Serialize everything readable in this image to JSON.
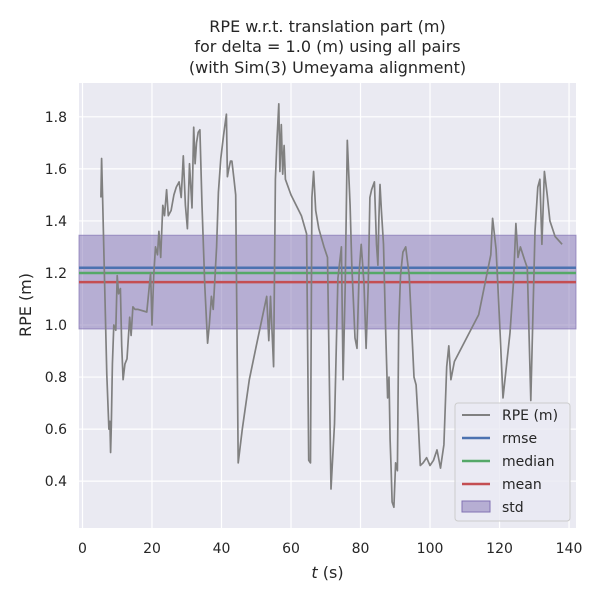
{
  "chart_data": {
    "type": "line",
    "title_lines": [
      "RPE w.r.t. translation part (m)",
      "for delta = 1.0 (m) using all pairs",
      "(with Sim(3) Umeyama alignment)"
    ],
    "xlabel_var": "t",
    "xlabel_unit": " (s)",
    "ylabel": "RPE (m)",
    "xlim": [
      -1,
      142
    ],
    "ylim": [
      0.22,
      1.93
    ],
    "xticks": [
      0,
      20,
      40,
      60,
      80,
      100,
      120,
      140
    ],
    "yticks": [
      0.4,
      0.6,
      0.8,
      1.0,
      1.2,
      1.4,
      1.6,
      1.8
    ],
    "ytick_labels": [
      "0.4",
      "0.6",
      "0.8",
      "1.0",
      "1.2",
      "1.4",
      "1.6",
      "1.8"
    ],
    "grid": true,
    "legend_position": "lower-right",
    "legend": [
      "RPE (m)",
      "rmse",
      "median",
      "mean",
      "std"
    ],
    "colors": {
      "rpe": "#808080",
      "rmse": "#4c72b0",
      "median": "#55a868",
      "mean": "#c44e52",
      "std_fill": "#8172b3",
      "plot_bg": "#eaeaf2",
      "grid": "#ffffff"
    },
    "stats": {
      "rmse": 1.22,
      "median": 1.2,
      "mean": 1.165,
      "std_low": 0.985,
      "std_high": 1.345
    },
    "series": [
      {
        "name": "RPE (m)",
        "x": [
          5.3,
          5.5,
          5.8,
          6.2,
          7.0,
          7.6,
          7.9,
          8.1,
          8.3,
          8.6,
          9.0,
          9.6,
          10.0,
          10.4,
          10.9,
          11.3,
          11.7,
          12.2,
          12.8,
          13.6,
          14.0,
          14.5,
          15.1,
          16.0,
          18.5,
          19.6,
          20.0,
          20.5,
          21.0,
          21.6,
          22.0,
          22.5,
          23.1,
          23.6,
          24.2,
          24.7,
          25.5,
          26.3,
          27.0,
          27.8,
          28.4,
          29.0,
          29.6,
          30.2,
          30.8,
          31.5,
          32.0,
          32.4,
          32.8,
          33.3,
          33.8,
          34.4,
          35.2,
          36.0,
          36.5,
          37.1,
          37.6,
          38.0,
          38.6,
          39.1,
          39.8,
          40.6,
          41.4,
          41.7,
          42.1,
          42.6,
          43.0,
          43.6,
          44.1,
          44.8,
          46.0,
          48.0,
          50.0,
          53.0,
          53.6,
          54.1,
          55.0,
          55.5,
          56.0,
          56.5,
          56.8,
          57.2,
          57.6,
          58.0,
          58.4,
          60.0,
          63.0,
          64.5,
          65.1,
          65.6,
          66.0,
          66.5,
          67.1,
          68.0,
          69.5,
          70.5,
          71.5,
          72.5,
          73.5,
          74.5,
          75.0,
          75.6,
          76.2,
          77.0,
          77.5,
          77.9,
          78.4,
          79.0,
          79.6,
          80.2,
          81.0,
          81.6,
          82.2,
          82.7,
          83.2,
          84.0,
          84.6,
          85.0,
          85.3,
          85.6,
          86.0,
          86.6,
          87.2,
          87.8,
          88.2,
          88.5,
          88.8,
          89.1,
          89.6,
          90.1,
          90.6,
          91.0,
          91.5,
          92.2,
          93.0,
          94.0,
          95.4,
          96.0,
          96.6,
          97.2,
          98.0,
          99.0,
          100.0,
          101.0,
          102.0,
          103.0,
          104.0,
          104.8,
          105.4,
          106.0,
          107.0,
          114.0,
          117.5,
          118.0,
          119.0,
          120.0,
          121.0,
          123.0,
          124.0,
          124.7,
          125.3,
          126.0,
          127.2,
          128.0,
          129.0,
          130.2,
          131.0,
          131.6,
          132.2,
          132.9,
          133.7,
          134.5,
          136.0,
          138.0
        ],
        "y": [
          1.49,
          1.64,
          1.49,
          1.26,
          0.81,
          0.6,
          0.63,
          0.51,
          0.61,
          0.85,
          1.0,
          0.98,
          1.19,
          1.12,
          1.14,
          0.92,
          0.79,
          0.85,
          0.87,
          1.03,
          0.96,
          1.07,
          1.06,
          1.06,
          1.05,
          1.2,
          1.0,
          1.19,
          1.3,
          1.27,
          1.36,
          1.26,
          1.46,
          1.42,
          1.52,
          1.42,
          1.44,
          1.5,
          1.53,
          1.55,
          1.49,
          1.65,
          1.46,
          1.37,
          1.62,
          1.45,
          1.76,
          1.62,
          1.7,
          1.74,
          1.75,
          1.46,
          1.15,
          0.93,
          1.0,
          1.11,
          1.06,
          1.15,
          1.3,
          1.51,
          1.64,
          1.73,
          1.81,
          1.57,
          1.6,
          1.63,
          1.63,
          1.56,
          1.5,
          0.47,
          0.6,
          0.79,
          0.92,
          1.11,
          0.94,
          1.11,
          0.84,
          1.56,
          1.72,
          1.85,
          1.59,
          1.77,
          1.58,
          1.69,
          1.56,
          1.5,
          1.42,
          1.35,
          0.48,
          0.47,
          1.49,
          1.59,
          1.44,
          1.37,
          1.3,
          1.26,
          0.37,
          0.62,
          1.18,
          1.3,
          0.79,
          1.15,
          1.71,
          1.46,
          1.23,
          1.11,
          0.95,
          0.91,
          1.2,
          1.31,
          1.16,
          0.91,
          1.15,
          1.49,
          1.52,
          1.55,
          1.31,
          1.23,
          1.41,
          1.54,
          1.44,
          1.31,
          1.0,
          0.72,
          0.8,
          0.56,
          0.45,
          0.32,
          0.3,
          0.47,
          0.44,
          0.99,
          1.19,
          1.28,
          1.3,
          1.19,
          0.8,
          0.77,
          0.63,
          0.46,
          0.47,
          0.49,
          0.46,
          0.48,
          0.52,
          0.45,
          0.54,
          0.84,
          0.92,
          0.79,
          0.86,
          1.04,
          1.27,
          1.41,
          1.29,
          1.02,
          0.72,
          0.97,
          1.16,
          1.39,
          1.26,
          1.3,
          1.25,
          1.22,
          0.71,
          1.36,
          1.53,
          1.56,
          1.31,
          1.59,
          1.5,
          1.4,
          1.34,
          1.31
        ]
      }
    ]
  }
}
